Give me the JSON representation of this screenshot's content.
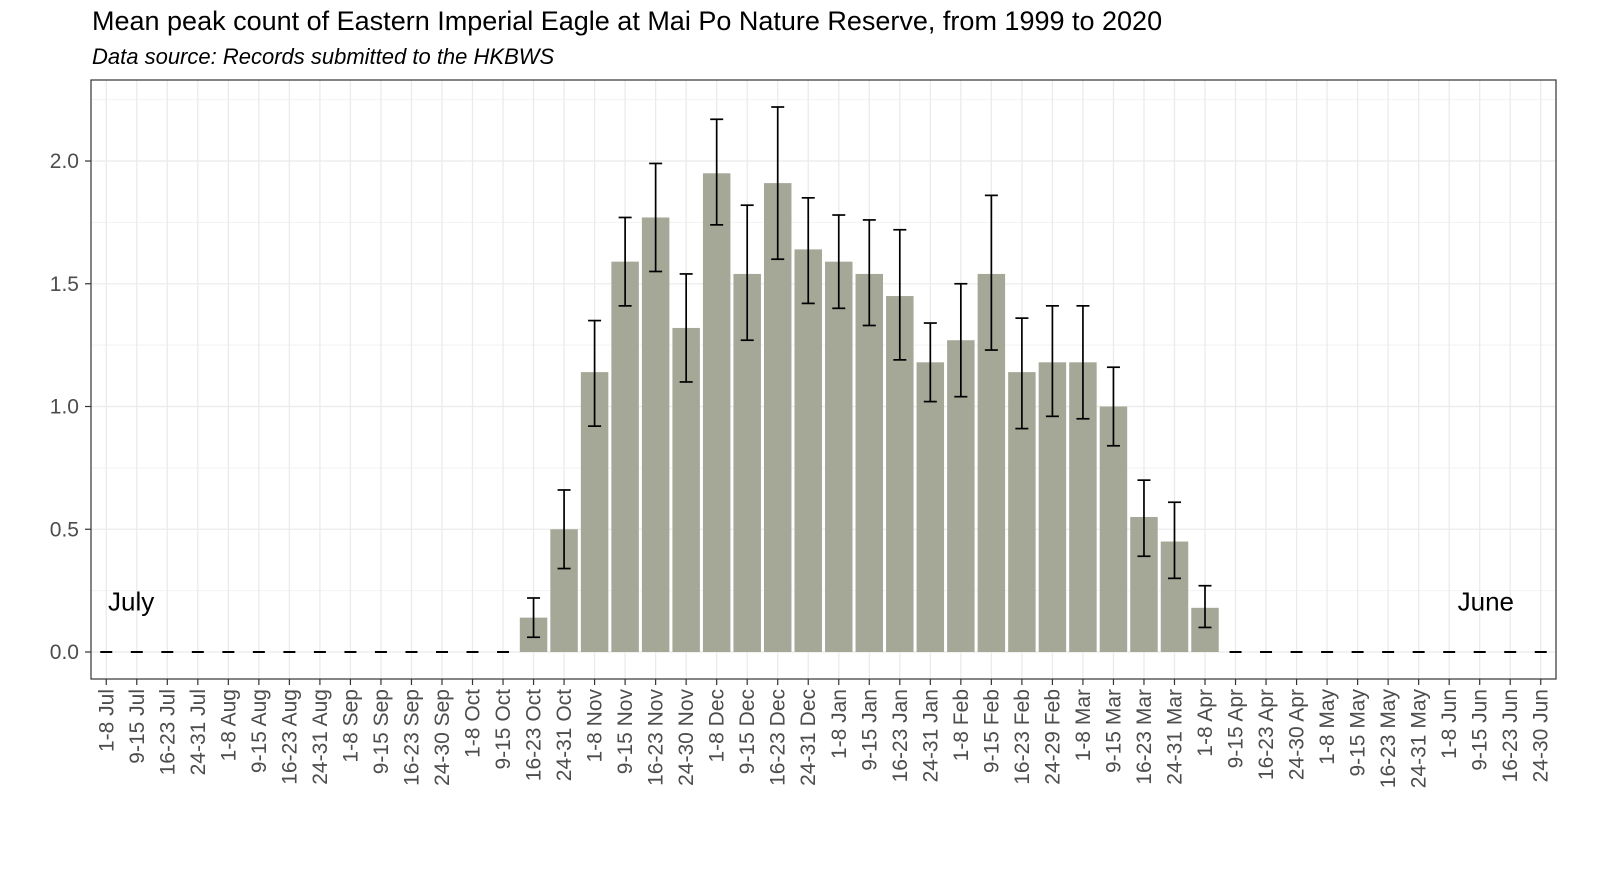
{
  "chart_data": {
    "type": "bar",
    "title": "Mean peak count of Eastern Imperial Eagle at Mai Po Nature Reserve, from 1999 to 2020",
    "subtitle": "Data source: Records submitted to the HKBWS",
    "xlabel": "",
    "ylabel": "",
    "ylim": [
      -0.11,
      2.33
    ],
    "yticks": [
      "0.0",
      "0.5",
      "1.0",
      "1.5",
      "2.0"
    ],
    "ytick_values": [
      0,
      0.5,
      1.0,
      1.5,
      2.0
    ],
    "grid": true,
    "bar_color": "#a5a797",
    "zero_marker": "dash",
    "annotations": {
      "start": "July",
      "end": "June"
    },
    "categories": [
      "1-8 Jul",
      "9-15 Jul",
      "16-23 Jul",
      "24-31 Jul",
      "1-8 Aug",
      "9-15 Aug",
      "16-23 Aug",
      "24-31 Aug",
      "1-8 Sep",
      "9-15 Sep",
      "16-23 Sep",
      "24-30 Sep",
      "1-8 Oct",
      "9-15 Oct",
      "16-23 Oct",
      "24-31 Oct",
      "1-8 Nov",
      "9-15 Nov",
      "16-23 Nov",
      "24-30 Nov",
      "1-8 Dec",
      "9-15 Dec",
      "16-23 Dec",
      "24-31 Dec",
      "1-8 Jan",
      "9-15 Jan",
      "16-23 Jan",
      "24-31 Jan",
      "1-8 Feb",
      "9-15 Feb",
      "16-23 Feb",
      "24-29 Feb",
      "1-8 Mar",
      "9-15 Mar",
      "16-23 Mar",
      "24-31 Mar",
      "1-8 Apr",
      "9-15 Apr",
      "16-23 Apr",
      "24-30 Apr",
      "1-8 May",
      "9-15 May",
      "16-23 May",
      "24-31 May",
      "1-8 Jun",
      "9-15 Jun",
      "16-23 Jun",
      "24-30 Jun"
    ],
    "values": [
      0,
      0,
      0,
      0,
      0,
      0,
      0,
      0,
      0,
      0,
      0,
      0,
      0,
      0,
      0.14,
      0.5,
      1.14,
      1.59,
      1.77,
      1.32,
      1.95,
      1.54,
      1.91,
      1.64,
      1.59,
      1.54,
      1.45,
      1.18,
      1.27,
      1.54,
      1.14,
      1.18,
      1.18,
      1.0,
      0.55,
      0.45,
      0.18,
      0,
      0,
      0,
      0,
      0,
      0,
      0,
      0,
      0,
      0,
      0
    ],
    "error_low": [
      null,
      null,
      null,
      null,
      null,
      null,
      null,
      null,
      null,
      null,
      null,
      null,
      null,
      null,
      0.06,
      0.34,
      0.92,
      1.41,
      1.55,
      1.1,
      1.74,
      1.27,
      1.6,
      1.42,
      1.4,
      1.33,
      1.19,
      1.02,
      1.04,
      1.23,
      0.91,
      0.96,
      0.95,
      0.84,
      0.39,
      0.3,
      0.1,
      null,
      null,
      null,
      null,
      null,
      null,
      null,
      null,
      null,
      null,
      null
    ],
    "error_high": [
      null,
      null,
      null,
      null,
      null,
      null,
      null,
      null,
      null,
      null,
      null,
      null,
      null,
      null,
      0.22,
      0.66,
      1.35,
      1.77,
      1.99,
      1.54,
      2.17,
      1.82,
      2.22,
      1.85,
      1.78,
      1.76,
      1.72,
      1.34,
      1.5,
      1.86,
      1.36,
      1.41,
      1.41,
      1.16,
      0.7,
      0.61,
      0.27,
      null,
      null,
      null,
      null,
      null,
      null,
      null,
      null,
      null,
      null,
      null
    ]
  }
}
